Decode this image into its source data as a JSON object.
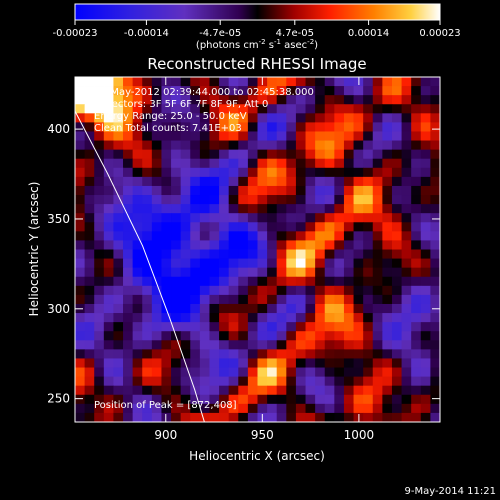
{
  "chart_data": {
    "type": "heatmap",
    "title": "Reconstructed RHESSI Image",
    "xlabel": "Heliocentric X (arcsec)",
    "ylabel": "Heliocentric Y (arcsec)",
    "x_ticks": [
      900,
      950,
      1000
    ],
    "y_ticks": [
      250,
      300,
      350,
      400
    ],
    "xlim": [
      853,
      1042
    ],
    "ylim": [
      237,
      429
    ],
    "colorbar": {
      "range": [
        -0.00023,
        0.00023
      ],
      "tick_labels": [
        "-0.00023",
        "-0.00014",
        "-4.7e-05",
        "4.7e-05",
        "0.00014",
        "0.00023"
      ],
      "tick_values": [
        -0.00023,
        -0.00014,
        -4.7e-05,
        4.7e-05,
        0.00014,
        0.00023
      ],
      "units_label": [
        "(photons cm",
        "-2",
        " s",
        "-1",
        " asec",
        "-2",
        ")"
      ]
    },
    "annotations": {
      "time": "28-May-2012 02:39:44.000 to 02:45:38.000",
      "detectors": "Detectors: 3F 5F 6F 7F 8F 9F, Att 0",
      "energy": "Energy Range: 25.0 - 50.0 keV",
      "clean": "Clean      Total counts: 7.41E+03",
      "peak": "Position of Peak = [872,408]"
    },
    "limb_curve": [
      [
        852,
        412
      ],
      [
        870,
        375
      ],
      [
        888,
        335
      ],
      [
        902,
        295
      ],
      [
        915,
        255
      ],
      [
        920,
        237
      ]
    ],
    "grid": false,
    "colors": {
      "background": "#000000",
      "foreground": "#ffffff",
      "low": "#0000ff",
      "zero": "#000000",
      "high": "#ffffff"
    }
  },
  "footer": {
    "timestamp": "9-May-2014 11:21"
  }
}
